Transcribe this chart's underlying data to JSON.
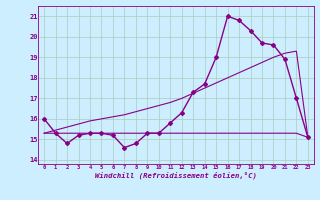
{
  "xlabel": "Windchill (Refroidissement éolien,°C)",
  "bg_color": "#cceeff",
  "grid_color": "#aaccbb",
  "line_color": "#880088",
  "x_hours": [
    0,
    1,
    2,
    3,
    4,
    5,
    6,
    7,
    8,
    9,
    10,
    11,
    12,
    13,
    14,
    15,
    16,
    17,
    18,
    19,
    20,
    21,
    22,
    23
  ],
  "y_windchill": [
    16.0,
    15.3,
    14.8,
    15.2,
    15.3,
    15.3,
    15.2,
    14.6,
    14.8,
    15.3,
    15.3,
    15.8,
    16.3,
    17.3,
    17.7,
    19.0,
    21.0,
    20.8,
    20.3,
    19.7,
    19.6,
    18.9,
    17.0,
    15.1
  ],
  "y_line1": [
    15.3,
    15.3,
    15.3,
    15.3,
    15.3,
    15.3,
    15.3,
    15.3,
    15.3,
    15.3,
    15.3,
    15.3,
    15.3,
    15.3,
    15.3,
    15.3,
    15.3,
    15.3,
    15.3,
    15.3,
    15.3,
    15.3,
    15.3,
    15.1
  ],
  "y_line2": [
    15.3,
    15.45,
    15.6,
    15.75,
    15.9,
    16.0,
    16.1,
    16.2,
    16.35,
    16.5,
    16.65,
    16.8,
    17.0,
    17.25,
    17.5,
    17.75,
    18.0,
    18.25,
    18.5,
    18.75,
    19.0,
    19.2,
    19.3,
    15.1
  ],
  "ylim": [
    13.8,
    21.5
  ],
  "xlim": [
    -0.5,
    23.5
  ],
  "yticks": [
    14,
    15,
    16,
    17,
    18,
    19,
    20,
    21
  ],
  "xticks": [
    0,
    1,
    2,
    3,
    4,
    5,
    6,
    7,
    8,
    9,
    10,
    11,
    12,
    13,
    14,
    15,
    16,
    17,
    18,
    19,
    20,
    21,
    22,
    23
  ]
}
